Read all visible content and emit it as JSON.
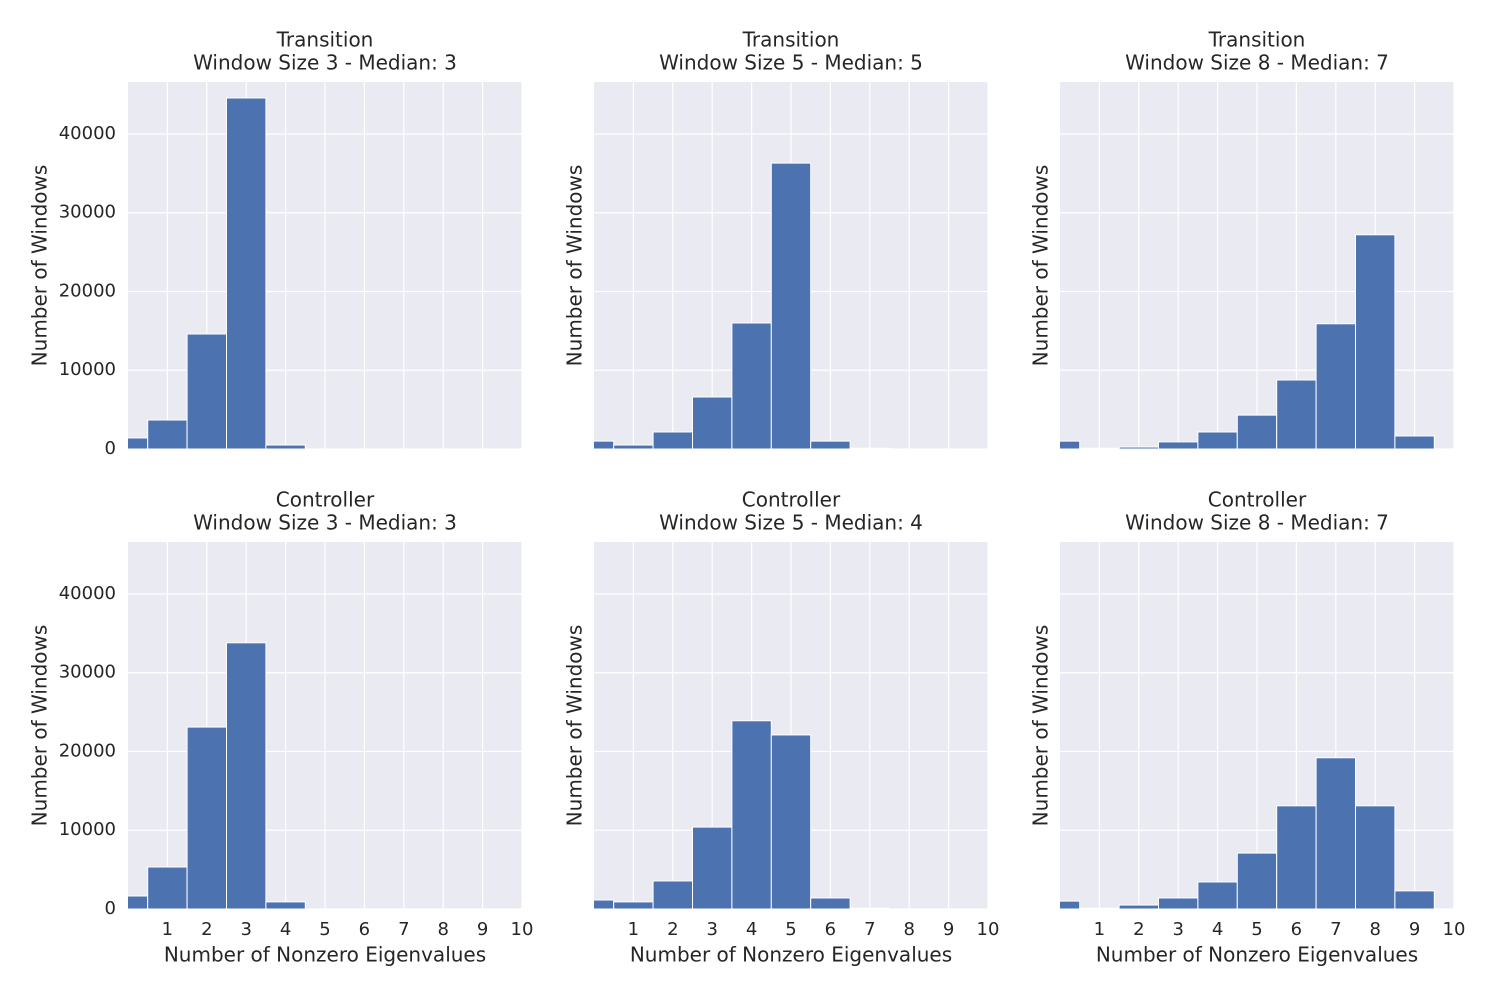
{
  "chart_data": [
    {
      "type": "histogram",
      "title": "Transition",
      "subtitle": "Window Size 3 - Median: 3",
      "ylabel": "Number of Windows",
      "bins": [
        -0.5,
        0.5,
        1.5,
        2.5,
        3.5,
        4.5,
        5.5,
        6.5,
        7.5,
        8.5,
        9.5
      ],
      "counts": [
        1400,
        3680,
        14600,
        44570,
        500,
        0,
        0,
        0,
        0,
        0
      ],
      "color": "#4c72b0",
      "xlim": [
        0,
        10
      ],
      "xticks": [
        1,
        2,
        3,
        4,
        5,
        6,
        7,
        8,
        9,
        10
      ],
      "ylim": [
        0,
        46600
      ],
      "yticks": [
        0,
        10000,
        20000,
        30000,
        40000
      ],
      "grid": true
    },
    {
      "type": "histogram",
      "title": "Transition",
      "subtitle": "Window Size 5 - Median: 5",
      "ylabel": "Number of Windows",
      "bins": [
        -0.5,
        0.5,
        1.5,
        2.5,
        3.5,
        4.5,
        5.5,
        6.5,
        7.5,
        8.5,
        9.5
      ],
      "counts": [
        1000,
        500,
        2160,
        6600,
        16000,
        36300,
        1000,
        100,
        0,
        0
      ],
      "color": "#4c72b0",
      "xlim": [
        0,
        10
      ],
      "xticks": [
        1,
        2,
        3,
        4,
        5,
        6,
        7,
        8,
        9,
        10
      ],
      "ylim": [
        0,
        46600
      ],
      "yticks": [
        0,
        10000,
        20000,
        30000,
        40000
      ],
      "grid": true
    },
    {
      "type": "histogram",
      "title": "Transition",
      "subtitle": "Window Size 8 - Median: 7",
      "ylabel": "Number of Windows",
      "bins": [
        -0.5,
        0.5,
        1.5,
        2.5,
        3.5,
        4.5,
        5.5,
        6.5,
        7.5,
        8.5,
        9.5
      ],
      "counts": [
        1000,
        100,
        250,
        900,
        2160,
        4300,
        8760,
        15900,
        27200,
        1650
      ],
      "color": "#4c72b0",
      "xlim": [
        0,
        10
      ],
      "xticks": [
        1,
        2,
        3,
        4,
        5,
        6,
        7,
        8,
        9,
        10
      ],
      "ylim": [
        0,
        46600
      ],
      "yticks": [
        0,
        10000,
        20000,
        30000,
        40000
      ],
      "grid": true
    },
    {
      "type": "histogram",
      "title": "Controller",
      "subtitle": "Window Size 3 - Median: 3",
      "xlabel": "Number of Nonzero Eigenvalues",
      "ylabel": "Number of Windows",
      "bins": [
        -0.5,
        0.5,
        1.5,
        2.5,
        3.5,
        4.5,
        5.5,
        6.5,
        7.5,
        8.5,
        9.5
      ],
      "counts": [
        1650,
        5330,
        23100,
        33800,
        900,
        0,
        0,
        0,
        0,
        0
      ],
      "color": "#4c72b0",
      "xlim": [
        0,
        10
      ],
      "xticks": [
        1,
        2,
        3,
        4,
        5,
        6,
        7,
        8,
        9,
        10
      ],
      "ylim": [
        0,
        46600
      ],
      "yticks": [
        0,
        10000,
        20000,
        30000,
        40000
      ],
      "grid": true
    },
    {
      "type": "histogram",
      "title": "Controller",
      "subtitle": "Window Size 5 - Median: 4",
      "xlabel": "Number of Nonzero Eigenvalues",
      "ylabel": "Number of Windows",
      "bins": [
        -0.5,
        0.5,
        1.5,
        2.5,
        3.5,
        4.5,
        5.5,
        6.5,
        7.5,
        8.5,
        9.5
      ],
      "counts": [
        1140,
        900,
        3560,
        10400,
        23900,
        22100,
        1400,
        100,
        0,
        0
      ],
      "color": "#4c72b0",
      "xlim": [
        0,
        10
      ],
      "xticks": [
        1,
        2,
        3,
        4,
        5,
        6,
        7,
        8,
        9,
        10
      ],
      "ylim": [
        0,
        46600
      ],
      "yticks": [
        0,
        10000,
        20000,
        30000,
        40000
      ],
      "grid": true
    },
    {
      "type": "histogram",
      "title": "Controller",
      "subtitle": "Window Size 8 - Median: 7",
      "xlabel": "Number of Nonzero Eigenvalues",
      "ylabel": "Number of Windows",
      "bins": [
        -0.5,
        0.5,
        1.5,
        2.5,
        3.5,
        4.5,
        5.5,
        6.5,
        7.5,
        8.5,
        9.5
      ],
      "counts": [
        1000,
        100,
        500,
        1400,
        3430,
        7100,
        13100,
        19200,
        13100,
        2300
      ],
      "color": "#4c72b0",
      "xlim": [
        0,
        10
      ],
      "xticks": [
        1,
        2,
        3,
        4,
        5,
        6,
        7,
        8,
        9,
        10
      ],
      "ylim": [
        0,
        46600
      ],
      "yticks": [
        0,
        10000,
        20000,
        30000,
        40000
      ],
      "grid": true
    }
  ]
}
